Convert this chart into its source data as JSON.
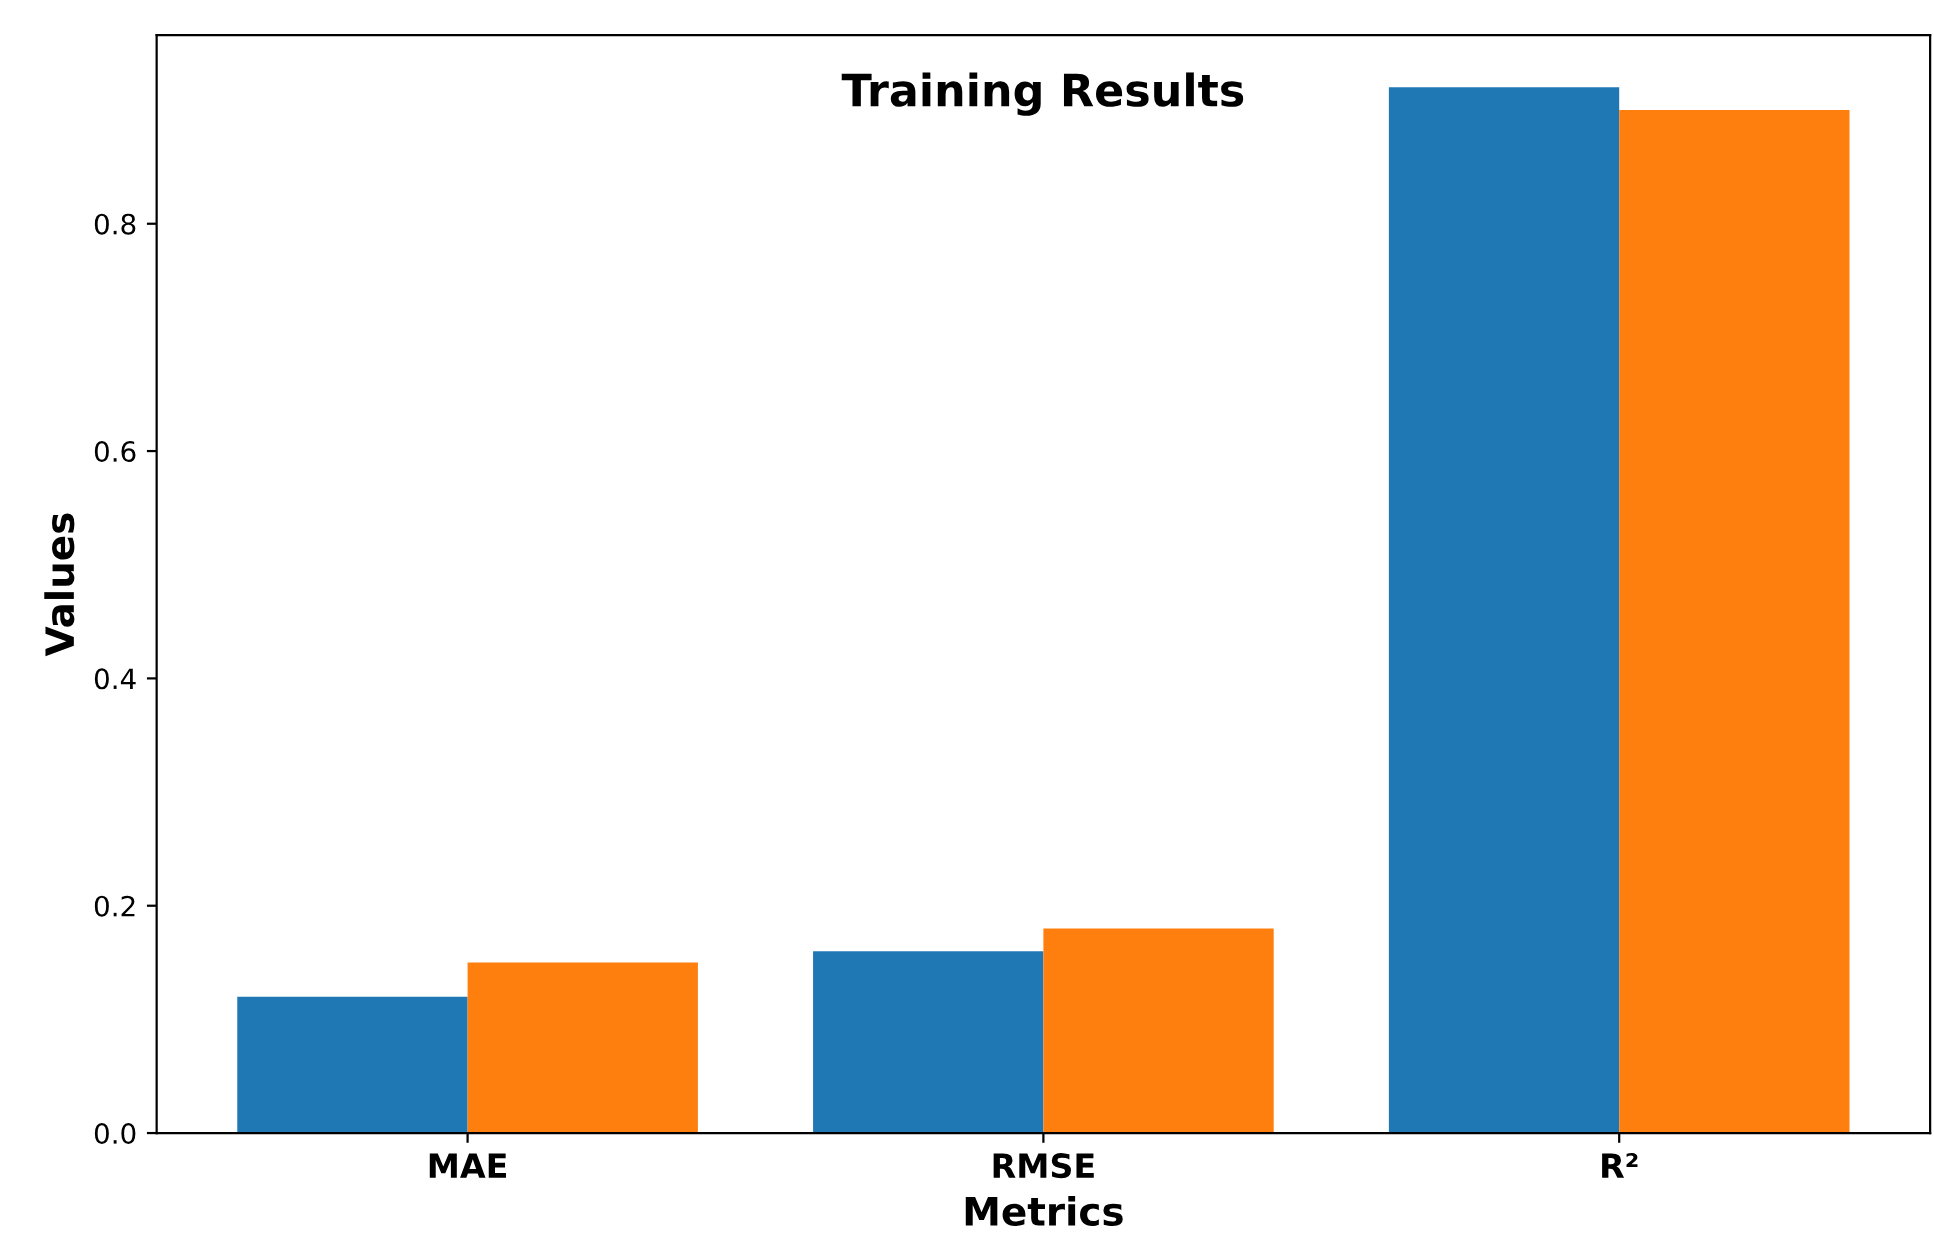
{
  "chart_data": {
    "type": "bar",
    "title": "Training Results",
    "xlabel": "Metrics",
    "ylabel": "Values",
    "categories": [
      "MAE",
      "RMSE",
      "R²"
    ],
    "series": [
      {
        "color": "#1f77b4",
        "values": [
          0.12,
          0.16,
          0.92
        ]
      },
      {
        "color": "#ff7f0e",
        "values": [
          0.15,
          0.18,
          0.9
        ]
      }
    ],
    "ylim": [
      0,
      0.966
    ],
    "yticks": [
      {
        "value": 0,
        "label": "0.0"
      },
      0.2,
      0.4,
      0.6,
      0.8
    ],
    "grid": false
  }
}
